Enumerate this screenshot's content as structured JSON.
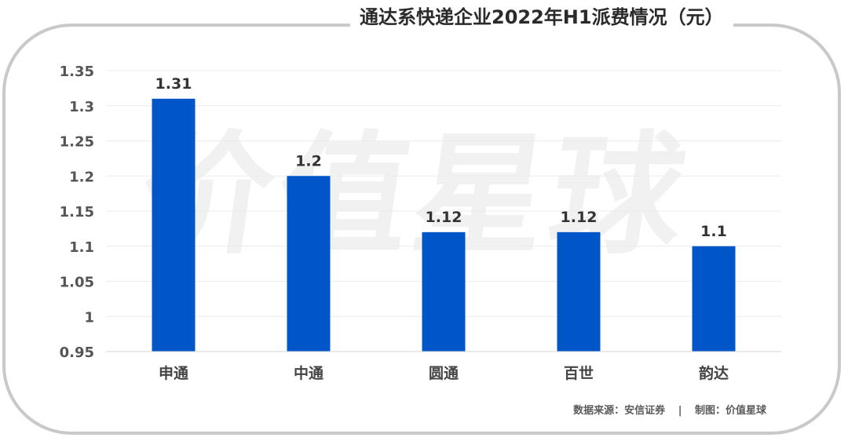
{
  "chart_data": {
    "type": "bar",
    "title": "通达系快递企业2022年H1派费情况（元）",
    "categories": [
      "申通",
      "中通",
      "圆通",
      "百世",
      "韵达"
    ],
    "values": [
      1.31,
      1.2,
      1.12,
      1.12,
      1.1
    ],
    "data_labels": [
      "1.31",
      "1.2",
      "1.12",
      "1.12",
      "1.1"
    ],
    "yticks": [
      "0.95",
      "1",
      "1.05",
      "1.1",
      "1.15",
      "1.2",
      "1.25",
      "1.3",
      "1.35"
    ],
    "ylim": [
      0.95,
      1.35
    ],
    "bar_color": "#0056c8",
    "grid": true
  },
  "watermark": "价值星球",
  "source": {
    "left": "数据来源：安信证券",
    "separator": "|",
    "right": "制图：价值星球"
  }
}
